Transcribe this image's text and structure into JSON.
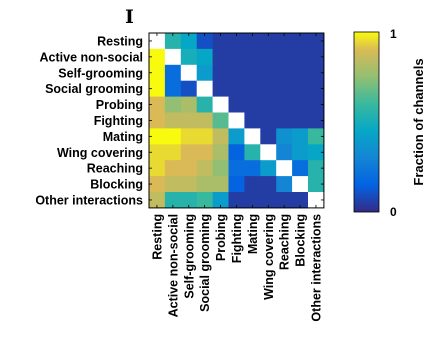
{
  "panel_label": "I",
  "chart_data": {
    "type": "heatmap",
    "row_labels": [
      "Resting",
      "Active non-social",
      "Self-grooming",
      "Social grooming",
      "Probing",
      "Fighting",
      "Mating",
      "Wing covering",
      "Reaching",
      "Blocking",
      "Other interactions"
    ],
    "col_labels": [
      "Resting",
      "Active non-social",
      "Self-grooming",
      "Social grooming",
      "Probing",
      "Fighting",
      "Mating",
      "Wing covering",
      "Reaching",
      "Blocking",
      "Other interactions"
    ],
    "values": [
      [
        null,
        0.55,
        0.45,
        0.1,
        0.05,
        0.05,
        0.05,
        0.05,
        0.05,
        0.05,
        0.05
      ],
      [
        1.0,
        null,
        0.5,
        0.45,
        0.05,
        0.05,
        0.05,
        0.05,
        0.05,
        0.05,
        0.05
      ],
      [
        1.0,
        0.2,
        null,
        0.4,
        0.05,
        0.05,
        0.05,
        0.05,
        0.05,
        0.05,
        0.05
      ],
      [
        1.0,
        0.2,
        0.1,
        null,
        0.05,
        0.05,
        0.05,
        0.05,
        0.05,
        0.05,
        0.05
      ],
      [
        0.9,
        0.75,
        0.8,
        0.55,
        null,
        0.05,
        0.05,
        0.05,
        0.05,
        0.05,
        0.05
      ],
      [
        0.9,
        0.85,
        0.85,
        0.85,
        0.65,
        null,
        0.05,
        0.05,
        0.05,
        0.05,
        0.05
      ],
      [
        1.0,
        1.0,
        0.95,
        0.95,
        0.85,
        0.4,
        null,
        0.05,
        0.35,
        0.4,
        0.6
      ],
      [
        0.95,
        0.95,
        0.9,
        0.9,
        0.8,
        0.15,
        0.55,
        null,
        0.3,
        0.4,
        0.45
      ],
      [
        0.95,
        0.9,
        0.9,
        0.85,
        0.75,
        0.2,
        0.2,
        0.4,
        null,
        0.2,
        0.55
      ],
      [
        0.9,
        0.85,
        0.85,
        0.8,
        0.8,
        0.15,
        0.05,
        0.05,
        0.3,
        null,
        0.55
      ],
      [
        0.85,
        0.55,
        0.55,
        0.6,
        0.4,
        0.05,
        0.05,
        0.05,
        0.05,
        0.05,
        null
      ]
    ],
    "diagonal_color": "#ffffff",
    "colormap": "parula",
    "colorbar": {
      "label": "Fraction of channels",
      "min": 0,
      "max": 1,
      "tick_labels": [
        "0",
        "1"
      ]
    }
  }
}
